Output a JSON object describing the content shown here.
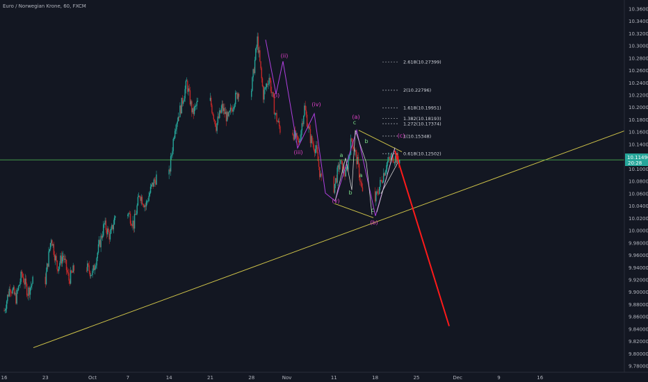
{
  "title": "Euro / Norwegian Krone, 60, FXCM",
  "colors": {
    "background": "#131722",
    "up": "#26a69a",
    "down": "#c62828",
    "trendline": "#d4c84a",
    "projection": "#ff1a1a",
    "wave": "#b040e0",
    "subwave": "#ffffff",
    "horizontal": "#4caf50",
    "price_badge": "#26a69a"
  },
  "price_badge": {
    "price": "10.11490",
    "countdown": "20:28"
  },
  "chart_data": {
    "type": "candlestick",
    "title": "Euro / Norwegian Krone, 60, FXCM",
    "y_ticks": [
      "10.36000",
      "10.34000",
      "10.32000",
      "10.30000",
      "10.28000",
      "10.26000",
      "10.24000",
      "10.22000",
      "10.20000",
      "10.18000",
      "10.16000",
      "10.14000",
      "10.12000",
      "10.10000",
      "10.08000",
      "10.06000",
      "10.04000",
      "10.02000",
      "10.00000",
      "9.98000",
      "9.96000",
      "9.94000",
      "9.92000",
      "9.90000",
      "9.88000",
      "9.86000",
      "9.84000",
      "9.82000",
      "9.80000",
      "9.78000"
    ],
    "ylim": [
      9.77,
      10.37
    ],
    "x_ticks": [
      "16",
      "23",
      "Oct",
      "7",
      "14",
      "21",
      "28",
      "Nov",
      "11",
      "18",
      "25",
      "Dec",
      "9",
      "16"
    ],
    "path": [
      [
        "16",
        9.87
      ],
      [
        "17",
        9.91
      ],
      [
        "18",
        9.89
      ],
      [
        "19",
        9.93
      ],
      [
        "20",
        9.9
      ],
      [
        "23",
        9.92
      ],
      [
        "24",
        9.99
      ],
      [
        "25",
        9.94
      ],
      [
        "26",
        9.96
      ],
      [
        "27",
        9.92
      ],
      [
        "30",
        9.94
      ],
      [
        "Oct",
        9.93
      ],
      [
        "2",
        9.97
      ],
      [
        "3",
        10.01
      ],
      [
        "4",
        9.99
      ],
      [
        "7",
        10.03
      ],
      [
        "8",
        10.01
      ],
      [
        "9",
        10.06
      ],
      [
        "10",
        10.04
      ],
      [
        "11",
        10.07
      ],
      [
        "14",
        10.09
      ],
      [
        "15",
        10.17
      ],
      [
        "16",
        10.2
      ],
      [
        "17",
        10.24
      ],
      [
        "18",
        10.19
      ],
      [
        "21",
        10.21
      ],
      [
        "22",
        10.17
      ],
      [
        "23",
        10.2
      ],
      [
        "24",
        10.18
      ],
      [
        "25",
        10.21
      ],
      [
        "28",
        10.23
      ],
      [
        "29",
        10.31
      ],
      [
        "30",
        10.22
      ],
      [
        "31",
        10.25
      ],
      [
        "Nov",
        10.19
      ],
      [
        "4",
        10.16
      ],
      [
        "5",
        10.14
      ],
      [
        "6",
        10.2
      ],
      [
        "7",
        10.15
      ],
      [
        "8",
        10.13
      ],
      [
        "11",
        10.07
      ],
      [
        "12",
        10.11
      ],
      [
        "13",
        10.09
      ],
      [
        "14",
        10.15
      ],
      [
        "15",
        10.11
      ],
      [
        "18",
        10.05
      ],
      [
        "19",
        10.08
      ],
      [
        "20",
        10.11
      ],
      [
        "21",
        10.12
      ],
      [
        "22",
        10.115
      ]
    ],
    "fib_levels": [
      {
        "label": "2.618(10.27399)",
        "value": 10.27399
      },
      {
        "label": "2(10.22796)",
        "value": 10.22796
      },
      {
        "label": "1.618(10.19951)",
        "value": 10.19951
      },
      {
        "label": "1.382(10.18193)",
        "value": 10.18193
      },
      {
        "label": "1.272(10.17374)",
        "value": 10.17374
      },
      {
        "label": "1(10.15348)",
        "value": 10.15348
      },
      {
        "label": "0.618(10.12502)",
        "value": 10.12502
      }
    ],
    "horizontal_line": 10.1149,
    "trendline": {
      "x": [
        "16",
        "Dec 16"
      ],
      "y": [
        9.81,
        10.162
      ]
    },
    "projection": {
      "x": [
        "21",
        "Nov 29"
      ],
      "y": [
        10.13,
        9.845
      ]
    },
    "waves": {
      "primary": [
        {
          "label": "(i)",
          "x": "Oct 30",
          "y": 10.21
        },
        {
          "label": "(ii)",
          "x": "Oct 31",
          "y": 10.28
        },
        {
          "label": "(iii)",
          "x": "Nov 4",
          "y": 10.126
        },
        {
          "label": "(iv)",
          "x": "Nov 6",
          "y": 10.18
        },
        {
          "label": "(v)",
          "x": "Nov 11",
          "y": 10.042
        },
        {
          "label": "(a)",
          "x": "Nov 14",
          "y": 10.168
        },
        {
          "label": "(b)",
          "x": "Nov 18",
          "y": 10.013
        },
        {
          "label": "(c)",
          "x": "Nov 20",
          "y": 10.146
        }
      ],
      "secondary": [
        {
          "label": "a",
          "x": "Nov 11",
          "y": 10.119
        },
        {
          "label": "b",
          "x": "Nov 12",
          "y": 10.051
        },
        {
          "label": "c",
          "x": "Nov 14",
          "y": 10.17
        },
        {
          "label": "b",
          "x": "Nov 15",
          "y": 10.148
        },
        {
          "label": "a",
          "x": "Nov 15",
          "y": 10.078
        },
        {
          "label": "c",
          "x": "Nov 17",
          "y": 10.03
        }
      ]
    }
  }
}
